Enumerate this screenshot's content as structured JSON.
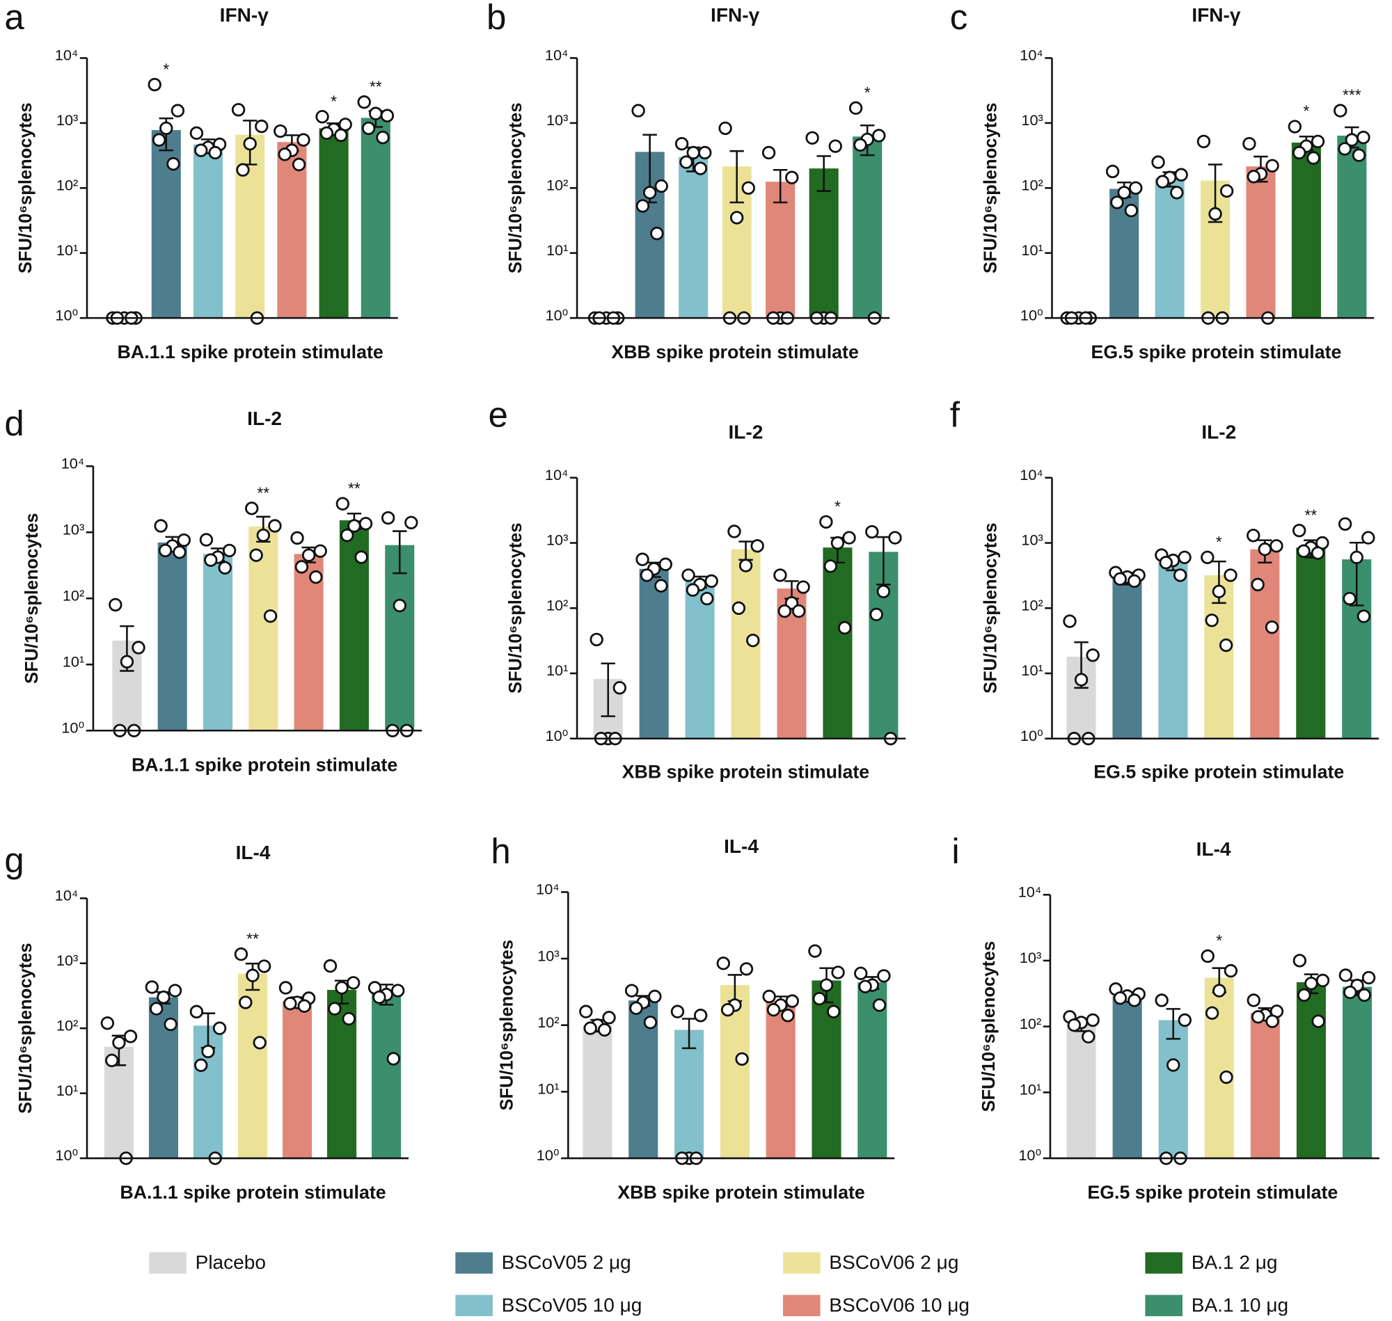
{
  "chart_data": [
    {
      "type": "bar",
      "panel": "a",
      "title": "IFN-γ",
      "ylabel": "SFU/10⁶splenocytes",
      "xlabel": "BA.1.1 spike protein stimulate",
      "log": true,
      "ylim": [
        1,
        10000
      ],
      "yticks": [
        {
          "value": 1,
          "label": "10⁰"
        },
        {
          "value": 10,
          "label": "10¹"
        },
        {
          "value": 100,
          "label": "10²"
        },
        {
          "value": 1000,
          "label": "10³"
        },
        {
          "value": 10000,
          "label": "10⁴"
        }
      ],
      "values": [
        1,
        780,
        470,
        660,
        510,
        830,
        1200
      ],
      "errors": [
        0,
        400,
        90,
        430,
        140,
        160,
        330
      ],
      "points": [
        [
          1,
          1,
          1,
          1,
          1
        ],
        [
          3900,
          1550,
          830,
          550,
          235
        ],
        [
          700,
          470,
          420,
          380,
          350
        ],
        [
          1600,
          890,
          480,
          190,
          1
        ],
        [
          750,
          550,
          380,
          330,
          230
        ],
        [
          1250,
          950,
          800,
          700,
          650
        ],
        [
          2100,
          1300,
          1400,
          830,
          600
        ]
      ],
      "annotations": [
        null,
        "*",
        null,
        null,
        null,
        "*",
        "**"
      ]
    },
    {
      "type": "bar",
      "panel": "b",
      "title": "IFN-γ",
      "ylabel": "SFU/10⁶splenocytes",
      "xlabel": "XBB spike protein stimulate",
      "log": true,
      "ylim": [
        1,
        10000
      ],
      "yticks": [
        {
          "value": 1,
          "label": "10⁰"
        },
        {
          "value": 10,
          "label": "10¹"
        },
        {
          "value": 100,
          "label": "10²"
        },
        {
          "value": 1000,
          "label": "10³"
        },
        {
          "value": 10000,
          "label": "10⁴"
        }
      ],
      "values": [
        1,
        360,
        300,
        215,
        125,
        200,
        620
      ],
      "errors": [
        0,
        300,
        120,
        155,
        65,
        110,
        300
      ],
      "points": [
        [
          1,
          1,
          1,
          1,
          1
        ],
        [
          1550,
          107,
          85,
          53,
          20
        ],
        [
          480,
          350,
          350,
          250,
          200
        ],
        [
          830,
          100,
          35,
          1,
          1
        ],
        [
          350,
          145,
          1,
          1,
          1
        ],
        [
          590,
          440,
          1,
          1,
          1
        ],
        [
          1700,
          640,
          560,
          460,
          1
        ]
      ],
      "annotations": [
        null,
        null,
        null,
        null,
        null,
        null,
        "*"
      ]
    },
    {
      "type": "bar",
      "panel": "c",
      "title": "IFN-γ",
      "ylabel": "SFU/10⁶splenocytes",
      "xlabel": "EG.5 spike protein stimulate",
      "log": true,
      "ylim": [
        1,
        10000
      ],
      "yticks": [
        {
          "value": 1,
          "label": "10⁰"
        },
        {
          "value": 10,
          "label": "10¹"
        },
        {
          "value": 100,
          "label": "10²"
        },
        {
          "value": 1000,
          "label": "10³"
        },
        {
          "value": 10000,
          "label": "10⁴"
        }
      ],
      "values": [
        1,
        97,
        140,
        130,
        215,
        500,
        640
      ],
      "errors": [
        0,
        25,
        35,
        100,
        90,
        120,
        220
      ],
      "points": [
        [
          1,
          1,
          1,
          1,
          1
        ],
        [
          180,
          100,
          85,
          60,
          45
        ],
        [
          250,
          160,
          145,
          125,
          85
        ],
        [
          520,
          90,
          40,
          1,
          1
        ],
        [
          480,
          220,
          165,
          150,
          1
        ],
        [
          880,
          520,
          440,
          350,
          290
        ],
        [
          1550,
          600,
          550,
          400,
          320
        ]
      ],
      "annotations": [
        null,
        null,
        null,
        null,
        null,
        "*",
        "***"
      ]
    },
    {
      "type": "bar",
      "panel": "d",
      "title": "IL-2",
      "ylabel": "SFU/10⁶splenocytes",
      "xlabel": "BA.1.1 spike protein stimulate",
      "log": true,
      "ylim": [
        1,
        10000
      ],
      "yticks": [
        {
          "value": 1,
          "label": "10⁰"
        },
        {
          "value": 10,
          "label": "10¹"
        },
        {
          "value": 100,
          "label": "10²"
        },
        {
          "value": 1000,
          "label": "10³"
        },
        {
          "value": 10000,
          "label": "10⁴"
        }
      ],
      "values": [
        23,
        700,
        470,
        1220,
        470,
        1520,
        640
      ],
      "errors": [
        15,
        150,
        100,
        500,
        120,
        400,
        400
      ],
      "points": [
        [
          80,
          18,
          11,
          1,
          1
        ],
        [
          1250,
          760,
          620,
          530,
          500
        ],
        [
          770,
          530,
          420,
          380,
          290
        ],
        [
          2300,
          1250,
          900,
          450,
          54
        ],
        [
          820,
          520,
          450,
          300,
          210
        ],
        [
          2700,
          1350,
          1250,
          900,
          420
        ],
        [
          1650,
          1400,
          78,
          1,
          1
        ]
      ],
      "annotations": [
        null,
        null,
        null,
        "**",
        null,
        "**",
        null
      ]
    },
    {
      "type": "bar",
      "panel": "e",
      "title": "IL-2",
      "ylabel": "SFU/10⁶splenocytes",
      "xlabel": "XBB spike protein stimulate",
      "log": true,
      "ylim": [
        1,
        10000
      ],
      "yticks": [
        {
          "value": 1,
          "label": "10⁰"
        },
        {
          "value": 10,
          "label": "10¹"
        },
        {
          "value": 100,
          "label": "10²"
        },
        {
          "value": 1000,
          "label": "10³"
        },
        {
          "value": 10000,
          "label": "10⁴"
        }
      ],
      "values": [
        8.2,
        400,
        255,
        800,
        200,
        850,
        730
      ],
      "errors": [
        6,
        100,
        50,
        250,
        60,
        350,
        500
      ],
      "points": [
        [
          33,
          6,
          1,
          1,
          1
        ],
        [
          560,
          470,
          400,
          320,
          220
        ],
        [
          320,
          260,
          230,
          190,
          140
        ],
        [
          1500,
          900,
          450,
          100,
          32
        ],
        [
          320,
          210,
          120,
          90,
          90
        ],
        [
          2100,
          1200,
          1000,
          440,
          50
        ],
        [
          1480,
          1200,
          180,
          80,
          1
        ]
      ],
      "annotations": [
        null,
        null,
        null,
        null,
        null,
        "*",
        null
      ]
    },
    {
      "type": "bar",
      "panel": "f",
      "title": "IL-2",
      "ylabel": "SFU/10⁶splenocytes",
      "xlabel": "EG.5 spike protein stimulate",
      "log": true,
      "ylim": [
        1,
        10000
      ],
      "yticks": [
        {
          "value": 1,
          "label": "10⁰"
        },
        {
          "value": 10,
          "label": "10¹"
        },
        {
          "value": 100,
          "label": "10²"
        },
        {
          "value": 1000,
          "label": "10³"
        },
        {
          "value": 10000,
          "label": "10⁴"
        }
      ],
      "values": [
        18,
        290,
        500,
        320,
        800,
        850,
        560
      ],
      "errors": [
        12,
        60,
        120,
        200,
        300,
        250,
        450
      ],
      "points": [
        [
          63,
          19,
          8,
          1,
          1
        ],
        [
          350,
          320,
          300,
          280,
          260
        ],
        [
          650,
          600,
          540,
          500,
          320
        ],
        [
          600,
          320,
          180,
          65,
          27
        ],
        [
          1300,
          900,
          800,
          230,
          51
        ],
        [
          1550,
          1000,
          850,
          750,
          700
        ],
        [
          1950,
          1200,
          600,
          140,
          75
        ]
      ],
      "annotations": [
        null,
        null,
        null,
        "*",
        null,
        "**",
        null
      ]
    },
    {
      "type": "bar",
      "panel": "g",
      "title": "IL-4",
      "ylabel": "SFU/10⁶splenocytes",
      "xlabel": "BA.1.1 spike protein stimulate",
      "log": true,
      "ylim": [
        1,
        10000
      ],
      "yticks": [
        {
          "value": 1,
          "label": "10⁰"
        },
        {
          "value": 10,
          "label": "10¹"
        },
        {
          "value": 100,
          "label": "10²"
        },
        {
          "value": 1000,
          "label": "10³"
        },
        {
          "value": 10000,
          "label": "10⁴"
        }
      ],
      "values": [
        52,
        300,
        110,
        690,
        260,
        390,
        350
      ],
      "errors": [
        25,
        60,
        60,
        300,
        40,
        150,
        120
      ],
      "points": [
        [
          120,
          75,
          60,
          32,
          1
        ],
        [
          430,
          380,
          300,
          200,
          115
        ],
        [
          180,
          100,
          44,
          27,
          1
        ],
        [
          1380,
          900,
          650,
          250,
          60
        ],
        [
          420,
          290,
          250,
          240,
          220
        ],
        [
          910,
          500,
          420,
          200,
          140
        ],
        [
          420,
          380,
          330,
          300,
          34
        ]
      ],
      "annotations": [
        null,
        null,
        null,
        "**",
        null,
        null,
        null
      ]
    },
    {
      "type": "bar",
      "panel": "h",
      "title": "IL-4",
      "ylabel": "SFU/10⁶splenocytes",
      "xlabel": "XBB spike protein stimulate",
      "log": true,
      "ylim": [
        1,
        10000
      ],
      "yticks": [
        {
          "value": 1,
          "label": "10⁰"
        },
        {
          "value": 10,
          "label": "10¹"
        },
        {
          "value": 100,
          "label": "10²"
        },
        {
          "value": 1000,
          "label": "10³"
        },
        {
          "value": 10000,
          "label": "10⁴"
        }
      ],
      "values": [
        100,
        235,
        85,
        400,
        230,
        470,
        440
      ],
      "errors": [
        20,
        40,
        40,
        170,
        40,
        250,
        90
      ],
      "points": [
        [
          160,
          130,
          100,
          90,
          85
        ],
        [
          330,
          270,
          220,
          180,
          110
        ],
        [
          160,
          140,
          1,
          1,
          1
        ],
        [
          850,
          700,
          200,
          170,
          31
        ],
        [
          270,
          230,
          200,
          170,
          140
        ],
        [
          1300,
          620,
          400,
          250,
          160
        ],
        [
          600,
          550,
          400,
          380,
          200
        ]
      ],
      "annotations": [
        null,
        null,
        null,
        null,
        null,
        null,
        null
      ]
    },
    {
      "type": "bar",
      "panel": "i",
      "title": "IL-4",
      "ylabel": "SFU/10⁶splenocytes",
      "xlabel": "EG.5 spike protein stimulate",
      "log": true,
      "ylim": [
        1,
        10000
      ],
      "yticks": [
        {
          "value": 1,
          "label": "10⁰"
        },
        {
          "value": 10,
          "label": "10¹"
        },
        {
          "value": 100,
          "label": "10²"
        },
        {
          "value": 1000,
          "label": "10³"
        },
        {
          "value": 10000,
          "label": "10⁴"
        }
      ],
      "values": [
        105,
        290,
        125,
        550,
        160,
        470,
        400
      ],
      "errors": [
        20,
        40,
        60,
        220,
        30,
        150,
        100
      ],
      "points": [
        [
          140,
          125,
          115,
          105,
          70
        ],
        [
          370,
          310,
          290,
          270,
          250
        ],
        [
          250,
          125,
          26,
          1,
          1
        ],
        [
          1170,
          700,
          350,
          160,
          17
        ],
        [
          250,
          170,
          150,
          140,
          120
        ],
        [
          1000,
          500,
          450,
          300,
          120
        ],
        [
          600,
          550,
          420,
          330,
          300
        ]
      ],
      "annotations": [
        null,
        null,
        null,
        "*",
        null,
        null,
        null
      ]
    }
  ],
  "legend": [
    {
      "name": "Placebo",
      "color": "#d9d9d9"
    },
    {
      "name": "BSCoV05 2 μg",
      "color": "#4e7d8e"
    },
    {
      "name": "BSCoV05 10 μg",
      "color": "#82c0cb"
    },
    {
      "name": "BSCoV06 2 μg",
      "color": "#ebe298"
    },
    {
      "name": "BSCoV06 10 μg",
      "color": "#e0877a"
    },
    {
      "name": "BA.1 2 μg",
      "color": "#226b22"
    },
    {
      "name": "BA.1 10 μg",
      "color": "#3b8f6c"
    }
  ]
}
